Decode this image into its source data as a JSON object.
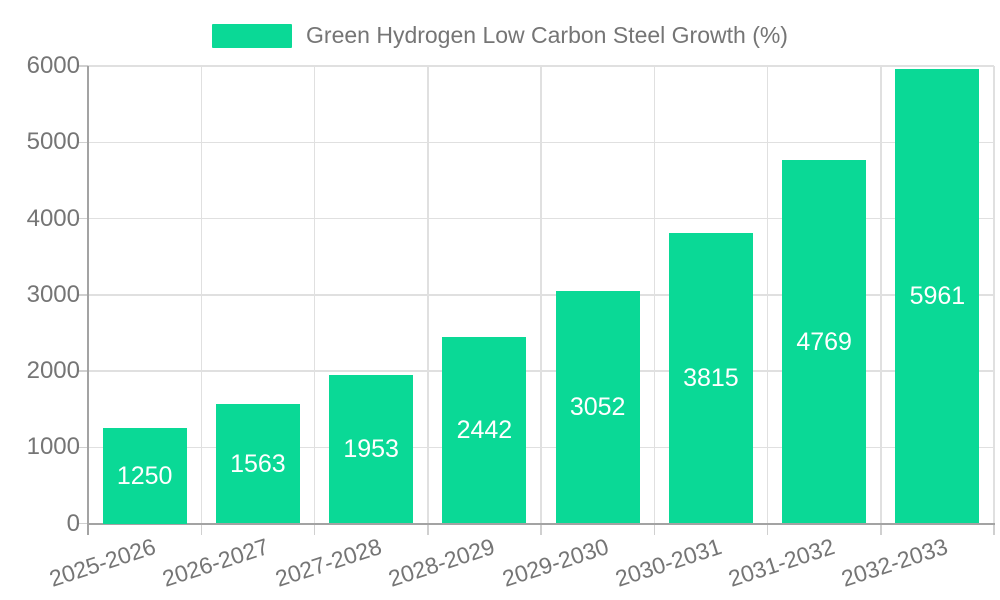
{
  "legend": {
    "label": "Green Hydrogen Low Carbon Steel Growth (%)"
  },
  "chart_data": {
    "type": "bar",
    "title": "Green Hydrogen Low Carbon Steel Growth (%)",
    "categories": [
      "2025-2026",
      "2026-2027",
      "2027-2028",
      "2028-2029",
      "2029-2030",
      "2030-2031",
      "2031-2032",
      "2032-2033"
    ],
    "values": [
      1250,
      1563,
      1953,
      2442,
      3052,
      3815,
      4769,
      5961
    ],
    "series_name": "Green Hydrogen Low Carbon Steel Growth (%)",
    "xlabel": "",
    "ylabel": "",
    "ylim": [
      0,
      6000
    ],
    "yticks": [
      0,
      1000,
      2000,
      3000,
      4000,
      5000,
      6000
    ],
    "grid": true,
    "legend_position": "top-center",
    "bar_color": "#0ad996",
    "value_label_color": "#ffffff",
    "axis_text_color": "#757575",
    "grid_color": "#e0e0e0",
    "tick_color": "#d0d0d0",
    "axis_line_color": "#a3a3a3",
    "background_color": "#ffffff"
  }
}
